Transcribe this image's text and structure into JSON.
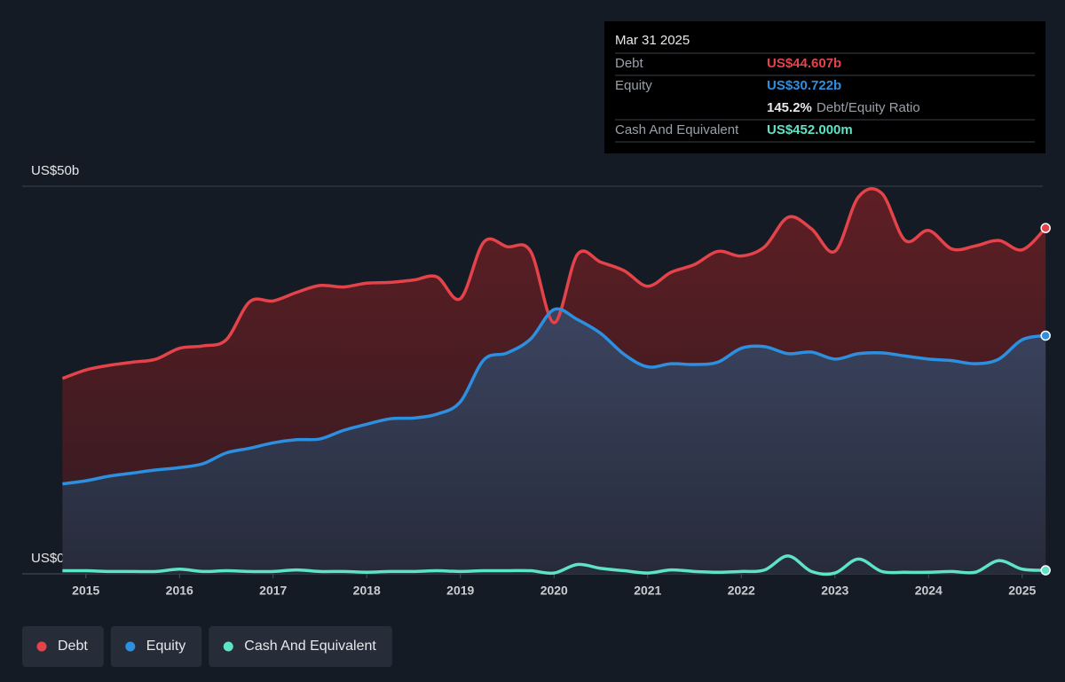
{
  "chart_data": {
    "type": "area",
    "x": [
      2014.75,
      2015,
      2015.25,
      2015.5,
      2015.75,
      2016,
      2016.25,
      2016.5,
      2016.75,
      2017,
      2017.25,
      2017.5,
      2017.75,
      2018,
      2018.25,
      2018.5,
      2018.75,
      2019,
      2019.25,
      2019.5,
      2019.75,
      2020,
      2020.25,
      2020.5,
      2020.75,
      2021,
      2021.25,
      2021.5,
      2021.75,
      2022,
      2022.25,
      2022.5,
      2022.75,
      2023,
      2023.25,
      2023.5,
      2023.75,
      2024,
      2024.25,
      2024.5,
      2024.75,
      2025,
      2025.25
    ],
    "series": [
      {
        "name": "Debt",
        "color": "#e5434a",
        "values": [
          25.2,
          26.3,
          26.9,
          27.3,
          27.7,
          29.1,
          29.4,
          30.2,
          35.1,
          35.2,
          36.3,
          37.2,
          37.0,
          37.5,
          37.6,
          37.9,
          38.3,
          35.5,
          42.8,
          42.2,
          41.6,
          32.4,
          41.2,
          40.2,
          39.1,
          37.1,
          38.9,
          39.9,
          41.6,
          41.0,
          42.2,
          46.0,
          44.5,
          41.6,
          48.6,
          49.1,
          43.0,
          44.3,
          41.9,
          42.3,
          43.0,
          41.8,
          44.607
        ]
      },
      {
        "name": "Equity",
        "color": "#2d8fe0",
        "values": [
          11.6,
          12.0,
          12.6,
          13.0,
          13.4,
          13.7,
          14.2,
          15.6,
          16.2,
          16.9,
          17.3,
          17.4,
          18.5,
          19.3,
          20.0,
          20.1,
          20.6,
          22.2,
          27.6,
          28.5,
          30.3,
          34.1,
          32.8,
          31.0,
          28.3,
          26.7,
          27.1,
          27.0,
          27.3,
          29.1,
          29.3,
          28.4,
          28.6,
          27.7,
          28.4,
          28.5,
          28.1,
          27.7,
          27.5,
          27.1,
          27.7,
          30.2,
          30.722
        ]
      },
      {
        "name": "Cash And Equivalent",
        "color": "#5ee3c7",
        "values": [
          0.4,
          0.4,
          0.3,
          0.3,
          0.3,
          0.6,
          0.3,
          0.4,
          0.3,
          0.3,
          0.5,
          0.3,
          0.3,
          0.2,
          0.3,
          0.3,
          0.4,
          0.3,
          0.4,
          0.4,
          0.4,
          0.1,
          1.2,
          0.7,
          0.4,
          0.1,
          0.5,
          0.3,
          0.2,
          0.3,
          0.5,
          2.3,
          0.3,
          0.1,
          1.9,
          0.3,
          0.2,
          0.2,
          0.3,
          0.2,
          1.7,
          0.6,
          0.452
        ]
      }
    ],
    "xlim": [
      2014.32,
      2025.22
    ],
    "xticks": [
      2015,
      2016,
      2017,
      2018,
      2019,
      2020,
      2021,
      2022,
      2023,
      2024,
      2025
    ],
    "ylim": [
      0,
      50
    ],
    "yticks": [
      {
        "value": 0,
        "label": "US$0"
      },
      {
        "value": 50,
        "label": "US$50b"
      }
    ],
    "tooltip": {
      "date": "Mar 31 2025",
      "rows": [
        {
          "value": "US$44.607b"
        },
        {
          "value": "US$30.722b"
        },
        {
          "value": "US$452.000m"
        }
      ],
      "ratio": "145.2%",
      "ratio_label": "Debt/Equity Ratio"
    }
  }
}
